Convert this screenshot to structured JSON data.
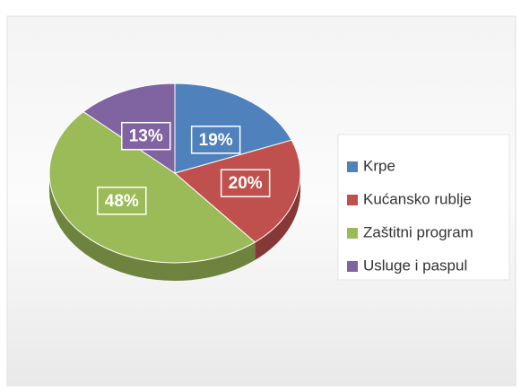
{
  "chart_data": {
    "type": "pie",
    "categories": [
      "Krpe",
      "Kućansko rublje",
      "Zaštitni program",
      "Usluge i paspul"
    ],
    "values": [
      19,
      20,
      48,
      13
    ],
    "value_labels": [
      "19%",
      "20%",
      "48%",
      "13%"
    ],
    "colors": [
      "#4f81bd",
      "#c0504d",
      "#9bbb59",
      "#8064a2"
    ],
    "legend": "right"
  }
}
